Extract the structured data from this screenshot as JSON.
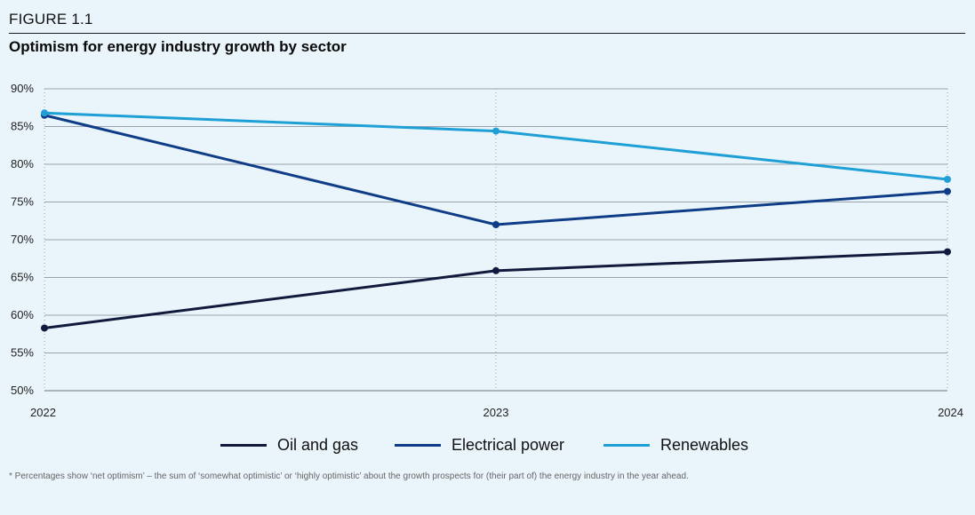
{
  "header": {
    "figure_label": "FIGURE 1.1",
    "title": "Optimism for energy industry growth by sector"
  },
  "chart_data": {
    "type": "line",
    "title": "Optimism for energy industry growth by sector",
    "x": [
      "2022",
      "2023",
      "2024"
    ],
    "ylim": [
      50,
      90
    ],
    "yticks": [
      50,
      55,
      60,
      65,
      70,
      75,
      80,
      85,
      90
    ],
    "ytick_labels": [
      "50%",
      "55%",
      "60%",
      "65%",
      "70%",
      "75%",
      "80%",
      "85%",
      "90%"
    ],
    "grid": true,
    "legend_position": "bottom",
    "series": [
      {
        "name": "Oil and gas",
        "values": [
          58.3,
          65.9,
          68.4
        ],
        "color": "#101a3c"
      },
      {
        "name": "Electrical power",
        "values": [
          86.5,
          72.0,
          76.4
        ],
        "color": "#0f3c86"
      },
      {
        "name": "Renewables",
        "values": [
          86.8,
          84.4,
          78.0
        ],
        "color": "#1ea0d6"
      }
    ]
  },
  "footnote": "* Percentages show ‘net optimism’ – the sum of ‘somewhat optimistic’ or ‘highly optimistic’ about the growth prospects for (their part of) the energy industry in the year ahead."
}
